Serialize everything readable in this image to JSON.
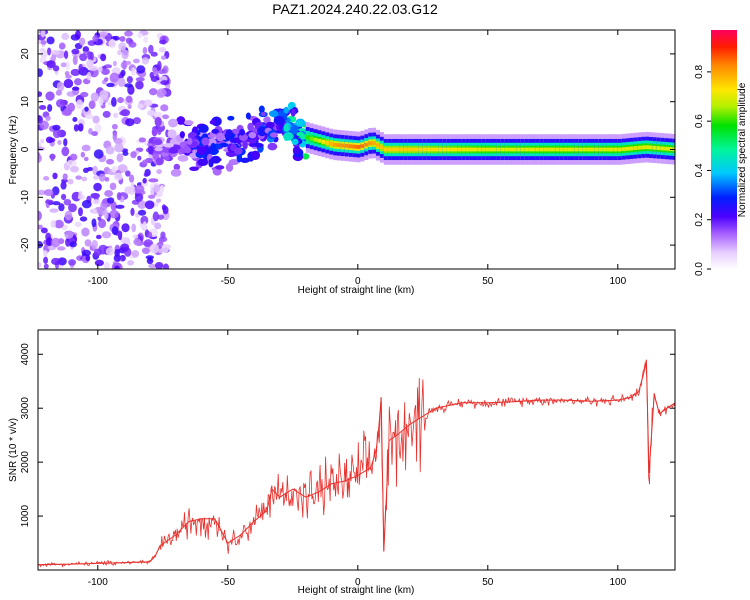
{
  "title": "PAZ1.2024.240.22.03.G12",
  "chart_data": [
    {
      "type": "heatmap",
      "title": "PAZ1.2024.240.22.03.G12",
      "xlabel": "Height of straight line (km)",
      "ylabel": "Frequency (Hz)",
      "xlim": [
        -123,
        122
      ],
      "ylim": [
        -25,
        25
      ],
      "x_ticks": [
        -100,
        -50,
        0,
        50,
        100
      ],
      "y_ticks": [
        -20,
        -10,
        0,
        10,
        20
      ],
      "colorbar": {
        "label": "Normalized spectral amplitude",
        "range": [
          0,
          0.97
        ],
        "ticks": [
          0.0,
          0.2,
          0.4,
          0.6,
          0.8
        ],
        "tick_labels": [
          "0.0",
          "0.2",
          "0.4",
          "0.6",
          "0.8"
        ],
        "colormap": "rainbow (white, violet, blue, cyan, green, yellow, orange, red, magenta)"
      },
      "ridge": {
        "description": "strong narrow band centred near 0 Hz for heights above about -20 km; scattered noise below about -75 km",
        "x": [
          -75,
          -60,
          -45,
          -35,
          -30,
          -25,
          -20,
          -10,
          0,
          5,
          10,
          20,
          50,
          100,
          110,
          122
        ],
        "freq": [
          0,
          1.5,
          1.5,
          4,
          5,
          4,
          2.5,
          1,
          0.5,
          1.5,
          0,
          0,
          0,
          0,
          0.5,
          0
        ],
        "amplitude": [
          0.2,
          0.3,
          0.3,
          0.35,
          0.4,
          0.5,
          0.6,
          0.8,
          0.85,
          0.8,
          0.75,
          0.75,
          0.7,
          0.7,
          0.7,
          0.7
        ]
      }
    },
    {
      "type": "line",
      "xlabel": "Height of straight line (km)",
      "ylabel": "SNR (10 * v/v)",
      "xlim": [
        -123,
        122
      ],
      "ylim": [
        0,
        4450
      ],
      "x_ticks": [
        -100,
        -50,
        0,
        50,
        100
      ],
      "y_ticks": [
        1000,
        2000,
        3000,
        4000
      ],
      "color": "#e8302c",
      "series": [
        {
          "x": [
            -123,
            -110,
            -95,
            -80,
            -78,
            -76,
            -70,
            -65,
            -60,
            -55,
            -50,
            -45,
            -40,
            -35,
            -33,
            -30,
            -25,
            -20,
            -15,
            -10,
            -5,
            0,
            5,
            7,
            8,
            9,
            10,
            12,
            15,
            20,
            25,
            30,
            40,
            50,
            60,
            70,
            80,
            90,
            100,
            105,
            108,
            110,
            111,
            112,
            114,
            116,
            122
          ],
          "y": [
            100,
            110,
            130,
            150,
            250,
            450,
            650,
            900,
            950,
            950,
            500,
            650,
            900,
            1100,
            1500,
            1350,
            1500,
            1350,
            1450,
            1600,
            1650,
            1750,
            1900,
            2200,
            2600,
            3200,
            350,
            2400,
            2500,
            2700,
            2850,
            3000,
            3100,
            3100,
            3120,
            3150,
            3150,
            3130,
            3150,
            3200,
            3300,
            3650,
            3900,
            1800,
            3250,
            2900,
            3100
          ]
        }
      ]
    }
  ]
}
